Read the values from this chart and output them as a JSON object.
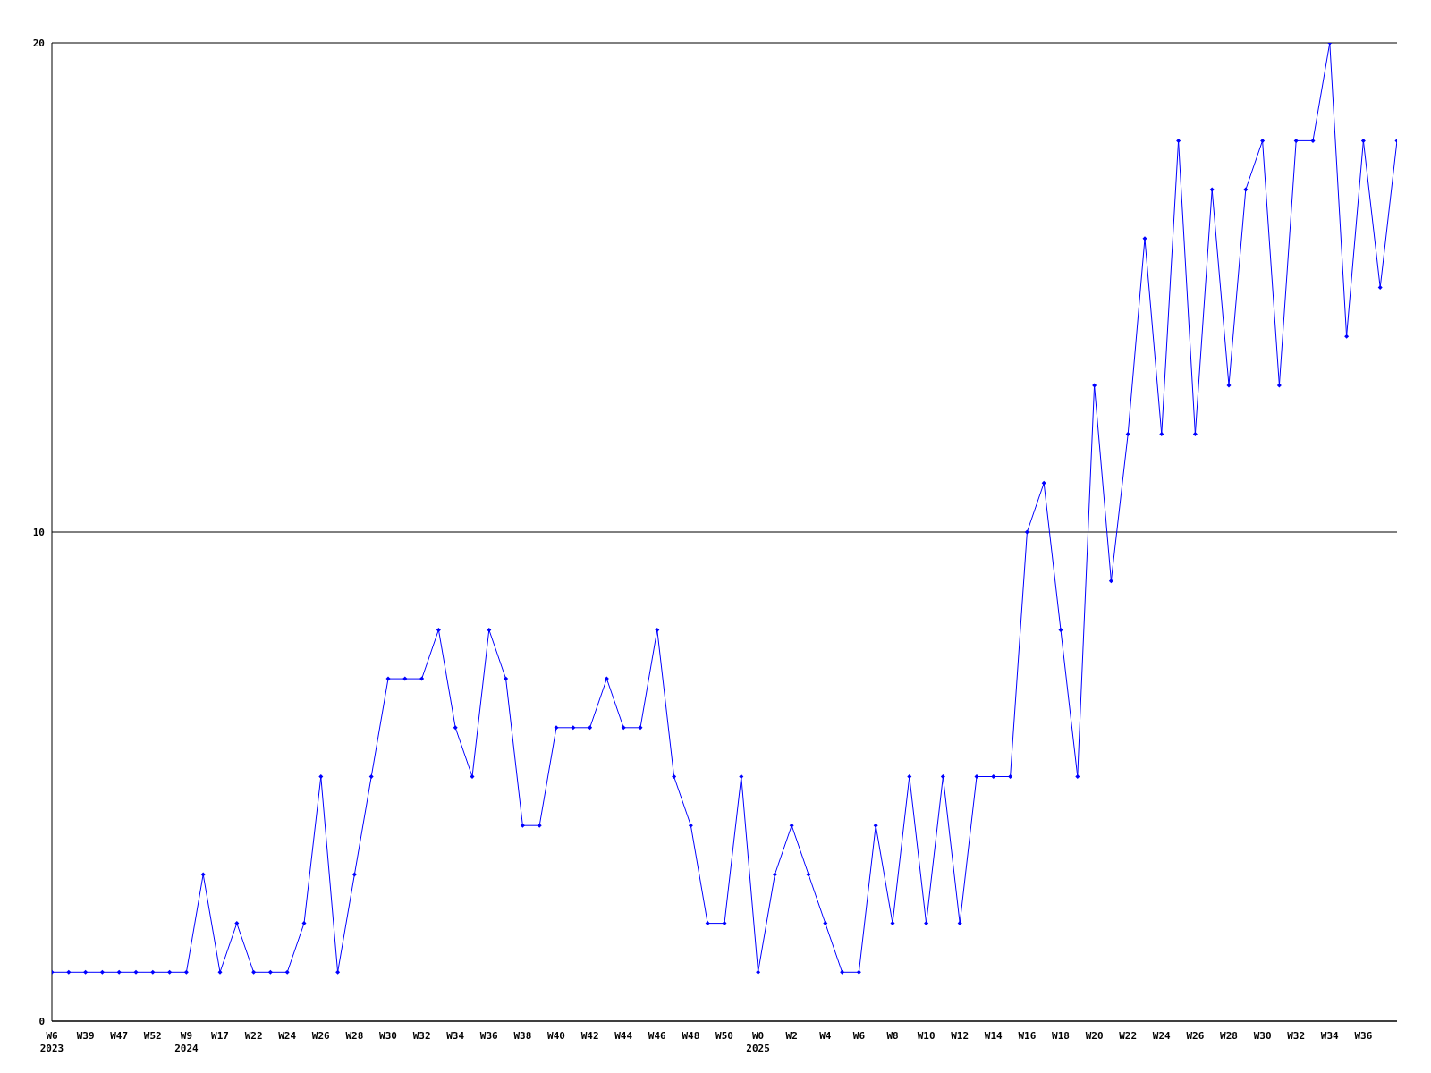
{
  "chart_data": {
    "type": "line",
    "categories": [
      "W6\n2023",
      null,
      "W39",
      null,
      "W47",
      null,
      "W52",
      null,
      "W9\n2024",
      null,
      "W17",
      null,
      "W22",
      null,
      "W24",
      null,
      "W26",
      null,
      "W28",
      null,
      "W30",
      null,
      "W32",
      null,
      "W34",
      null,
      "W36",
      null,
      "W38",
      null,
      "W40",
      null,
      "W42",
      null,
      "W44",
      null,
      "W46",
      null,
      "W48",
      null,
      "W50",
      null,
      "W0\n2025",
      null,
      "W2",
      null,
      "W4",
      null,
      "W6",
      null,
      "W8",
      null,
      "W10",
      null,
      "W12",
      null,
      "W14",
      null,
      "W16",
      null,
      "W18",
      null,
      "W20",
      null,
      "W22",
      null,
      "W24",
      null,
      "W26",
      null,
      "W28",
      null,
      "W30",
      null,
      "W32",
      null,
      "W34",
      null,
      "W36",
      null,
      null
    ],
    "series": [
      {
        "color": "#0000ff",
        "values": [
          1,
          1,
          1,
          1,
          1,
          1,
          1,
          1,
          1,
          3,
          1,
          2,
          1,
          1,
          1,
          2,
          5,
          1,
          3,
          5,
          7,
          7,
          7,
          8,
          6,
          5,
          8,
          7,
          4,
          4,
          6,
          6,
          6,
          7,
          6,
          6,
          8,
          5,
          4,
          2,
          2,
          5,
          1,
          3,
          4,
          3,
          2,
          1,
          1,
          4,
          2,
          5,
          2,
          5,
          2,
          5,
          5,
          5,
          10,
          11,
          8,
          5,
          13,
          9,
          12,
          16,
          12,
          18,
          12,
          17,
          13,
          17,
          18,
          13,
          18,
          18,
          20,
          14,
          18,
          15,
          18
        ]
      }
    ],
    "ylim": [
      0,
      20
    ],
    "yticks": [
      0,
      10,
      20
    ],
    "grid": "y",
    "marker": "diamond",
    "line_style": "solid"
  }
}
